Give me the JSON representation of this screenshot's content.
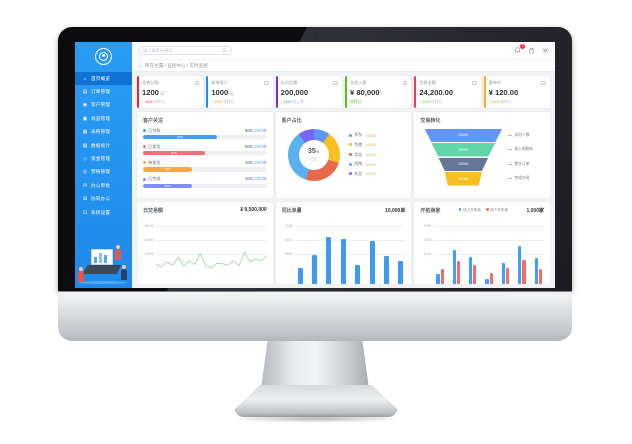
{
  "header": {
    "search_placeholder": "输入搜索关键词",
    "notification_count": "3"
  },
  "breadcrumb": "所在位置 / 监控中心 / 实时监控",
  "sidebar": {
    "items": [
      {
        "icon": "⌂",
        "label": "首页概览",
        "active": true
      },
      {
        "icon": "▤",
        "label": "订单管理",
        "active": false
      },
      {
        "icon": "◉",
        "label": "客户管理",
        "active": false
      },
      {
        "icon": "▣",
        "label": "商品管理",
        "active": false
      },
      {
        "icon": "▦",
        "label": "采购管理",
        "active": false
      },
      {
        "icon": "▧",
        "label": "数据统计",
        "active": false
      },
      {
        "icon": "◇",
        "label": "资金管理",
        "active": false
      },
      {
        "icon": "◎",
        "label": "营销管理",
        "active": false
      },
      {
        "icon": "✉",
        "label": "办公审批",
        "active": false
      },
      {
        "icon": "⊞",
        "label": "协同办公",
        "active": false
      },
      {
        "icon": "⊡",
        "label": "系统设置",
        "active": false
      }
    ]
  },
  "cards": [
    {
      "title": "销售总额",
      "value": "1200",
      "unit": "元",
      "delta": "↑ 10%",
      "delta_color": "#f5222d",
      "note": "较昨日",
      "accent": "#f5222d"
    },
    {
      "title": "新增客户",
      "value": "1000",
      "unit": "元",
      "delta": "↑ 10%",
      "delta_color": "#fa8c16",
      "note": "较昨日",
      "accent": "#1890ff"
    },
    {
      "title": "访问总量",
      "value": "200,000",
      "unit": "",
      "delta": "↑ 15%",
      "delta_color": "#1890ff",
      "note": "较上周",
      "accent": "#722ed1"
    },
    {
      "title": "总收入额",
      "value": "¥ 80,000",
      "unit": "",
      "delta": "较昨日",
      "delta_color": "#52c41a",
      "note": "",
      "accent": "#52c41a"
    },
    {
      "title": "交易金额",
      "value": "24,200.00",
      "unit": "",
      "delta": "↓ 22%",
      "delta_color": "#52c41a",
      "note": "较昨日",
      "accent": "#f5365c"
    },
    {
      "title": "客单价",
      "value": "¥ 120.00",
      "unit": "",
      "delta": "↑ 10%",
      "delta_color": "#fa8c16",
      "note": "较昨日",
      "accent": "#faad14"
    }
  ],
  "panels": {
    "focus_title": "客户关注",
    "ratio_title": "客户占比",
    "funnel_title": "交易转化",
    "daily_title": "日交易额",
    "daily_value": "¥ 9,500,000",
    "orders_title": "同比单量",
    "orders_value": "10,000单",
    "merchants_title": "开拓商家",
    "merchants_value": "1,000家"
  },
  "chart_data": [
    {
      "type": "bar",
      "variant": "progress-list",
      "title": "客户关注",
      "items": [
        {
          "label": "已付款",
          "value": 600,
          "total": 1000,
          "unit": "单",
          "percent": 60,
          "color": "#409eff"
        },
        {
          "label": "已发货",
          "value": 500,
          "total": 1000,
          "unit": "单",
          "percent": 50,
          "color": "#f56c79"
        },
        {
          "label": "待发货",
          "value": 400,
          "total": 1000,
          "unit": "单",
          "percent": 40,
          "color": "#f9a646"
        },
        {
          "label": "已完成",
          "value": 400,
          "total": 1000,
          "unit": "单",
          "percent": 40,
          "color": "#7f8ef4"
        }
      ]
    },
    {
      "type": "pie",
      "title": "客户占比",
      "center_label": "35",
      "center_unit": "%",
      "center_sub": "占比",
      "legend_position": "right",
      "series": [
        {
          "name": "华东",
          "value": 10000,
          "percent": 10,
          "color": "#6394f9"
        },
        {
          "name": "华南",
          "value": 10000,
          "percent": 20,
          "color": "#f6c022"
        },
        {
          "name": "华北",
          "value": 10000,
          "percent": 25,
          "color": "#e8684a"
        },
        {
          "name": "西南",
          "value": 10000,
          "percent": 35,
          "color": "#5ab1ef"
        },
        {
          "name": "东北",
          "value": 10000,
          "percent": 10,
          "color": "#7666f9"
        }
      ]
    },
    {
      "type": "bar",
      "variant": "funnel",
      "title": "交易转化",
      "layers": [
        {
          "label": "访问人数",
          "value": "30000",
          "color": "#6394f9",
          "top_w": 78,
          "bottom_w": 64
        },
        {
          "label": "加入购物车",
          "value": "25000",
          "color": "#5fd6a8",
          "top_w": 64,
          "bottom_w": 50
        },
        {
          "label": "提交订单",
          "value": "20000",
          "color": "#657798",
          "top_w": 50,
          "bottom_w": 37
        },
        {
          "label": "完成交易",
          "value": "12000",
          "color": "#f6c022",
          "top_w": 37,
          "bottom_w": 31
        }
      ]
    },
    {
      "type": "line",
      "title": "日交易额",
      "header_value": "¥ 9,500,000",
      "y_ticks": [
        "40000",
        "30000",
        "20000"
      ],
      "ylim": [
        15000,
        45000
      ],
      "values": [
        23000,
        21000,
        25000,
        22000,
        29000,
        21500,
        26000,
        23000,
        32000,
        22000,
        20000,
        24000,
        23500,
        22500,
        26000,
        22000,
        33000,
        25000,
        27500,
        26000,
        30000
      ],
      "color": "#90d7a0",
      "grid": true
    },
    {
      "type": "bar",
      "title": "同比单量",
      "header_value": "10,000单",
      "y_ticks": [
        "9000",
        "6000",
        "3000"
      ],
      "ylim": [
        0,
        9600
      ],
      "values": [
        2800,
        5200,
        8600,
        8300,
        3400,
        7800,
        5100,
        4200
      ],
      "color": "#3e9bf0",
      "grid": true
    },
    {
      "type": "bar",
      "variant": "grouped",
      "title": "开拓商家",
      "header_value": "1,000家",
      "y_ticks": [
        "3000",
        "2000",
        "1000"
      ],
      "ylim": [
        0,
        3300
      ],
      "series": [
        {
          "name": "线上开拓商",
          "color": "#409eff",
          "values": [
            600,
            2100,
            1700,
            300,
            1300,
            2400,
            1600
          ]
        },
        {
          "name": "线下开拓商",
          "color": "#f56c6c",
          "values": [
            900,
            1400,
            1200,
            700,
            1000,
            1500,
            900
          ]
        }
      ],
      "grid": true
    }
  ]
}
